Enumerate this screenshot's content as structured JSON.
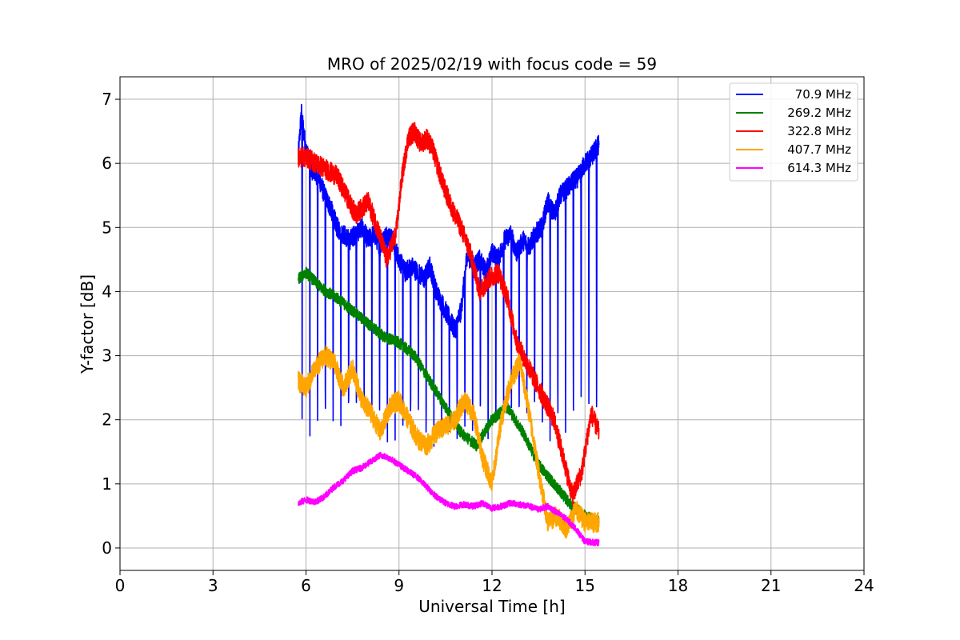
{
  "chart_data": {
    "type": "line",
    "title": "MRO of 2025/02/19 with focus code = 59",
    "xlabel": "Universal Time [h]",
    "ylabel": "Y-factor [dB]",
    "xlim": [
      0,
      24
    ],
    "ylim": [
      -0.35,
      7.35
    ],
    "xticks": [
      0,
      3,
      6,
      9,
      12,
      15,
      18,
      21,
      24
    ],
    "yticks": [
      0,
      1,
      2,
      3,
      4,
      5,
      6,
      7
    ],
    "grid": true,
    "legend_position": "top-right",
    "series": [
      {
        "name": "70.9 MHz",
        "color": "#0000ff",
        "x": [
          5.75,
          5.85,
          6.0,
          6.2,
          6.4,
          6.6,
          6.8,
          7.0,
          7.2,
          7.4,
          7.6,
          7.8,
          8.0,
          8.2,
          8.4,
          8.6,
          8.8,
          9.0,
          9.2,
          9.4,
          9.6,
          9.8,
          10.0,
          10.2,
          10.4,
          10.6,
          10.8,
          11.0,
          11.2,
          11.4,
          11.6,
          11.8,
          12.0,
          12.2,
          12.4,
          12.6,
          12.8,
          13.0,
          13.2,
          13.4,
          13.6,
          13.8,
          14.0,
          14.2,
          14.4,
          14.6,
          14.8,
          15.0,
          15.2,
          15.45
        ],
        "y": [
          6.1,
          6.8,
          6.2,
          5.9,
          5.8,
          5.5,
          5.3,
          5.0,
          4.9,
          4.8,
          4.9,
          5.0,
          4.8,
          4.9,
          4.7,
          4.9,
          4.8,
          4.5,
          4.3,
          4.4,
          4.3,
          4.2,
          4.4,
          4.0,
          3.8,
          3.6,
          3.4,
          3.7,
          4.6,
          4.4,
          4.5,
          4.3,
          4.6,
          4.5,
          4.8,
          4.9,
          4.6,
          4.8,
          4.7,
          4.9,
          5.0,
          5.4,
          5.2,
          5.5,
          5.6,
          5.7,
          5.8,
          6.0,
          6.1,
          6.3
        ],
        "dip_period_h": 0.25,
        "dip_min": [
          1.2,
          0.0
        ]
      },
      {
        "name": "269.2 MHz",
        "color": "#008000",
        "x": [
          5.75,
          6.0,
          6.5,
          7.0,
          7.5,
          8.0,
          8.5,
          9.0,
          9.5,
          10.0,
          10.5,
          11.0,
          11.5,
          12.0,
          12.5,
          13.0,
          13.5,
          14.0,
          14.5,
          15.0,
          15.45
        ],
        "y": [
          4.2,
          4.3,
          4.05,
          3.9,
          3.7,
          3.5,
          3.3,
          3.2,
          3.0,
          2.6,
          2.2,
          1.8,
          1.6,
          2.0,
          2.2,
          1.8,
          1.3,
          1.0,
          0.7,
          0.5,
          0.4
        ]
      },
      {
        "name": "322.8 MHz",
        "color": "#ff0000",
        "x": [
          5.75,
          6.0,
          6.5,
          7.0,
          7.3,
          7.6,
          8.0,
          8.3,
          8.6,
          8.9,
          9.1,
          9.3,
          9.5,
          9.7,
          9.9,
          10.1,
          10.4,
          10.7,
          11.0,
          11.3,
          11.6,
          11.9,
          12.2,
          12.5,
          12.8,
          13.1,
          13.4,
          13.7,
          14.0,
          14.3,
          14.6,
          14.9,
          15.2,
          15.45
        ],
        "y": [
          6.1,
          6.1,
          5.95,
          5.8,
          5.5,
          5.2,
          5.4,
          5.0,
          4.5,
          4.9,
          5.8,
          6.4,
          6.5,
          6.3,
          6.4,
          6.2,
          5.7,
          5.3,
          5.0,
          4.6,
          4.0,
          4.2,
          4.3,
          3.9,
          3.2,
          2.9,
          2.6,
          2.3,
          2.0,
          1.4,
          0.8,
          1.2,
          2.1,
          1.8
        ]
      },
      {
        "name": "407.7 MHz",
        "color": "#ffa500",
        "x": [
          5.75,
          6.0,
          6.3,
          6.6,
          6.9,
          7.2,
          7.5,
          7.8,
          8.1,
          8.4,
          8.7,
          9.0,
          9.3,
          9.6,
          9.9,
          10.2,
          10.5,
          10.8,
          11.1,
          11.4,
          11.7,
          12.0,
          12.3,
          12.6,
          12.9,
          13.2,
          13.5,
          13.8,
          14.1,
          14.4,
          14.7,
          15.0,
          15.45
        ],
        "y": [
          2.6,
          2.5,
          2.8,
          3.0,
          2.9,
          2.5,
          2.8,
          2.3,
          2.1,
          1.8,
          2.2,
          2.3,
          2.0,
          1.7,
          1.6,
          1.8,
          1.9,
          2.0,
          2.3,
          2.1,
          1.4,
          1.0,
          2.0,
          2.6,
          2.9,
          2.1,
          1.2,
          0.4,
          0.5,
          0.3,
          0.6,
          0.4,
          0.4
        ]
      },
      {
        "name": "614.3 MHz",
        "color": "#ff00ff",
        "x": [
          5.75,
          6.0,
          6.3,
          6.6,
          6.9,
          7.2,
          7.5,
          7.8,
          8.1,
          8.4,
          8.7,
          9.0,
          9.3,
          9.6,
          9.9,
          10.2,
          10.5,
          10.8,
          11.1,
          11.4,
          11.7,
          12.0,
          12.3,
          12.6,
          12.9,
          13.2,
          13.5,
          13.8,
          14.1,
          14.4,
          14.7,
          15.0,
          15.45
        ],
        "y": [
          0.7,
          0.75,
          0.72,
          0.8,
          0.95,
          1.05,
          1.2,
          1.25,
          1.35,
          1.45,
          1.4,
          1.3,
          1.2,
          1.1,
          0.95,
          0.8,
          0.7,
          0.65,
          0.68,
          0.65,
          0.7,
          0.62,
          0.65,
          0.7,
          0.68,
          0.65,
          0.6,
          0.65,
          0.55,
          0.45,
          0.3,
          0.1,
          0.08
        ]
      }
    ]
  }
}
